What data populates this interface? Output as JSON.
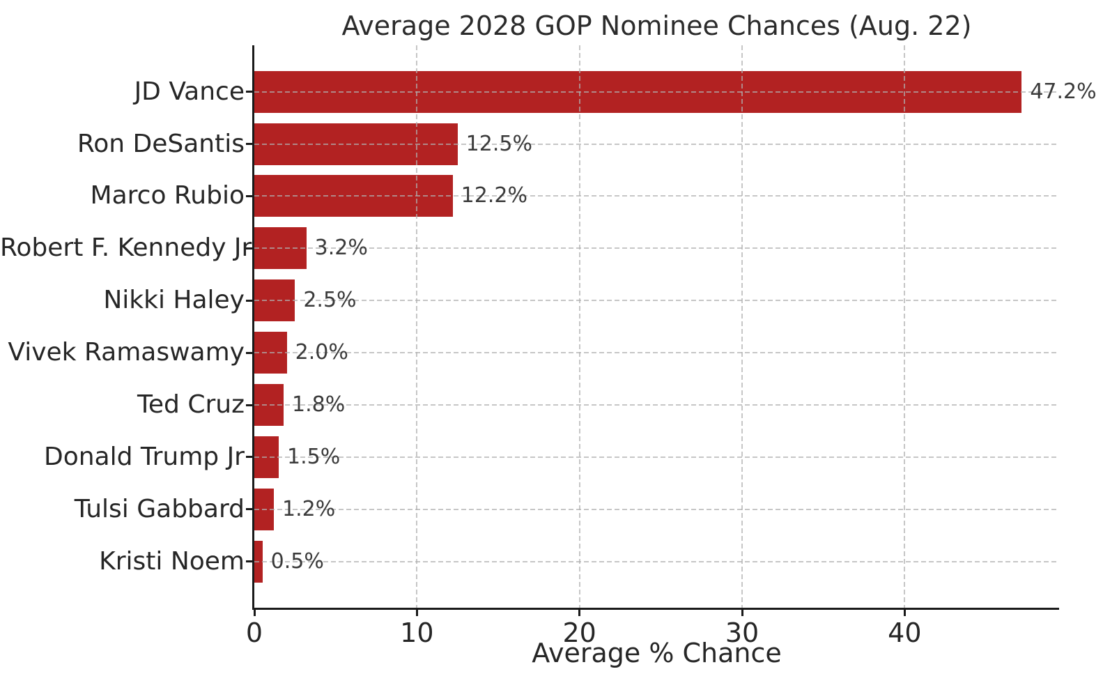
{
  "chart_data": {
    "type": "bar",
    "orientation": "horizontal",
    "title": "Average 2028 GOP Nominee Chances (Aug. 22)",
    "xlabel": "Average % Chance",
    "ylabel": "",
    "categories": [
      "JD Vance",
      "Ron DeSantis",
      "Marco Rubio",
      "Robert F. Kennedy Jr",
      "Nikki Haley",
      "Vivek Ramaswamy",
      "Ted Cruz",
      "Donald Trump Jr",
      "Tulsi Gabbard",
      "Kristi Noem"
    ],
    "values": [
      47.2,
      12.5,
      12.2,
      3.2,
      2.5,
      2.0,
      1.8,
      1.5,
      1.2,
      0.5
    ],
    "value_labels": [
      "47.2%",
      "12.5%",
      "12.2%",
      "3.2%",
      "2.5%",
      "2.0%",
      "1.8%",
      "1.5%",
      "1.2%",
      "0.5%"
    ],
    "xticks": [
      0,
      10,
      20,
      30,
      40
    ],
    "xtick_labels": [
      "0",
      "10",
      "20",
      "30",
      "40"
    ],
    "xlim": [
      0,
      49.5
    ],
    "grid": true,
    "grid_style": "dashed",
    "legend": false,
    "bar_color": "#b22222",
    "grid_color": "#b0b0b0",
    "axis_color": "#1a1a1a",
    "text_color": "#262626",
    "value_label_color": "#3a3a3a",
    "background_color": "#ffffff"
  }
}
